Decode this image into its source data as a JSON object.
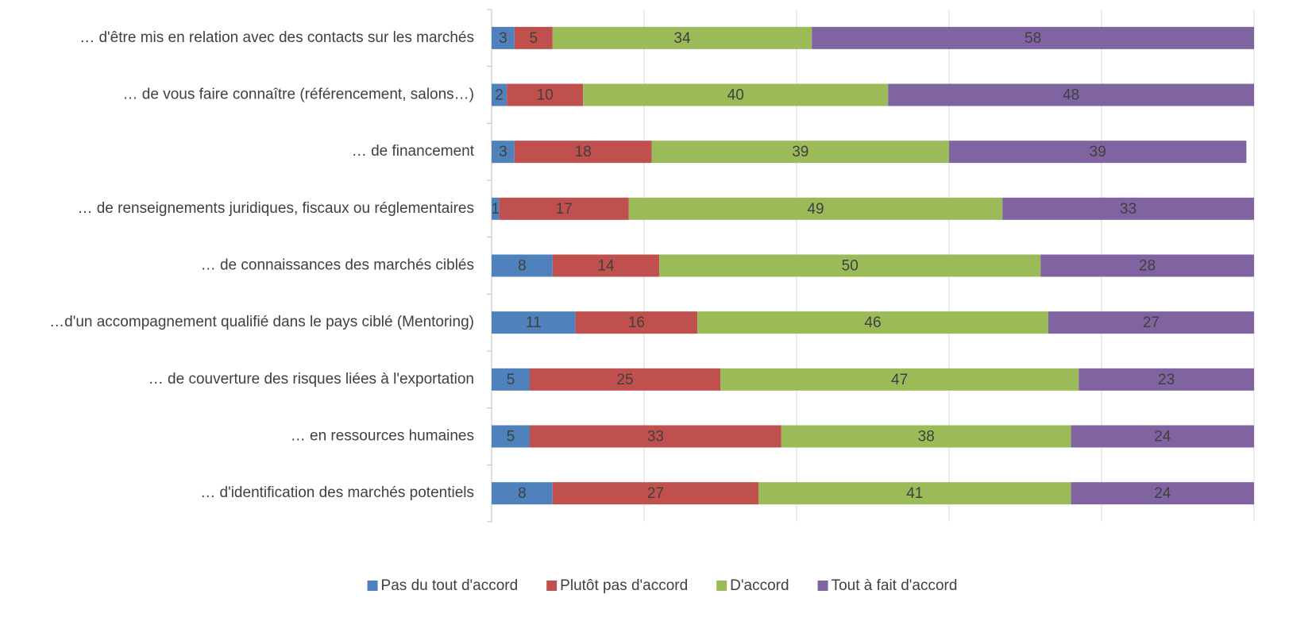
{
  "chart_data": {
    "type": "stacked_barh",
    "categories": [
      "… d'être mis en relation avec des contacts sur les marchés",
      "… de vous faire connaître (référencement, salons…)",
      "… de financement",
      "… de renseignements juridiques, fiscaux ou réglementaires",
      "… de connaissances des marchés ciblés",
      "…d'un accompagnement qualifié dans le pays ciblé (Mentoring)",
      "… de couverture des risques liées à l'exportation",
      "… en ressources humaines",
      "… d'identification des marchés potentiels"
    ],
    "series": [
      {
        "name": "Pas du tout d'accord",
        "color": "#4f81bd",
        "values": [
          3,
          2,
          3,
          1,
          8,
          11,
          5,
          5,
          8
        ]
      },
      {
        "name": "Plutôt pas d'accord",
        "color": "#c0504d",
        "values": [
          5,
          10,
          18,
          17,
          14,
          16,
          25,
          33,
          27
        ]
      },
      {
        "name": "D'accord",
        "color": "#9bbb59",
        "values": [
          34,
          40,
          39,
          49,
          50,
          46,
          47,
          38,
          41
        ]
      },
      {
        "name": "Tout à fait d'accord",
        "color": "#8064a2",
        "values": [
          58,
          48,
          39,
          33,
          28,
          27,
          23,
          24,
          24
        ]
      }
    ],
    "xlim": [
      0,
      100
    ],
    "xticks": [
      0,
      20,
      40,
      60,
      80,
      100
    ],
    "grid": true,
    "legend": "bottom"
  }
}
